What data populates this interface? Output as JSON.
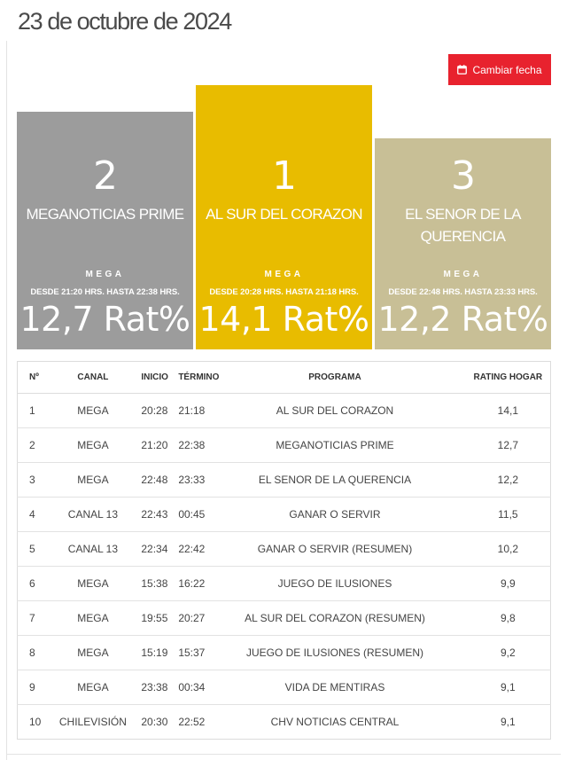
{
  "page_title": "23 de octubre de 2024",
  "change_date_button": {
    "label": "Cambiar fecha",
    "icon": "calendar-icon"
  },
  "podium": [
    {
      "rank": "2",
      "program": "MEGANOTICIAS PRIME",
      "channel": "MEGA",
      "timeslot": "DESDE 21:20 HRS. HASTA 22:38 HRS.",
      "rating": "12,7 Rat%",
      "color": "#9c9c9c"
    },
    {
      "rank": "1",
      "program": "AL SUR DEL CORAZON",
      "channel": "MEGA",
      "timeslot": "DESDE 20:28 HRS. HASTA 21:18 HRS.",
      "rating": "14,1 Rat%",
      "color": "#e8bc00"
    },
    {
      "rank": "3",
      "program": "EL SENOR DE LA QUERENCIA",
      "channel": "MEGA",
      "timeslot": "DESDE 22:48 HRS. HASTA 23:33 HRS.",
      "rating": "12,2 Rat%",
      "color": "#c8bf96"
    }
  ],
  "table": {
    "headers": {
      "no": "Nº",
      "canal": "CANAL",
      "inicio": "INICIO",
      "termino": "TÉRMINO",
      "programa": "PROGRAMA",
      "rating": "RATING HOGAR"
    },
    "rows": [
      {
        "no": "1",
        "canal": "MEGA",
        "inicio": "20:28",
        "termino": "21:18",
        "programa": "AL SUR DEL CORAZON",
        "rating": "14,1"
      },
      {
        "no": "2",
        "canal": "MEGA",
        "inicio": "21:20",
        "termino": "22:38",
        "programa": "MEGANOTICIAS PRIME",
        "rating": "12,7"
      },
      {
        "no": "3",
        "canal": "MEGA",
        "inicio": "22:48",
        "termino": "23:33",
        "programa": "EL SENOR DE LA QUERENCIA",
        "rating": "12,2"
      },
      {
        "no": "4",
        "canal": "CANAL 13",
        "inicio": "22:43",
        "termino": "00:45",
        "programa": "GANAR O SERVIR",
        "rating": "11,5"
      },
      {
        "no": "5",
        "canal": "CANAL 13",
        "inicio": "22:34",
        "termino": "22:42",
        "programa": "GANAR O SERVIR (RESUMEN)",
        "rating": "10,2"
      },
      {
        "no": "6",
        "canal": "MEGA",
        "inicio": "15:38",
        "termino": "16:22",
        "programa": "JUEGO DE ILUSIONES",
        "rating": "9,9"
      },
      {
        "no": "7",
        "canal": "MEGA",
        "inicio": "19:55",
        "termino": "20:27",
        "programa": "AL SUR DEL CORAZON (RESUMEN)",
        "rating": "9,8"
      },
      {
        "no": "8",
        "canal": "MEGA",
        "inicio": "15:19",
        "termino": "15:37",
        "programa": "JUEGO DE ILUSIONES (RESUMEN)",
        "rating": "9,2"
      },
      {
        "no": "9",
        "canal": "MEGA",
        "inicio": "23:38",
        "termino": "00:34",
        "programa": "VIDA DE MENTIRAS",
        "rating": "9,1"
      },
      {
        "no": "10",
        "canal": "CHILEVISIÓN",
        "inicio": "20:30",
        "termino": "22:52",
        "programa": "CHV NOTICIAS CENTRAL",
        "rating": "9,1"
      }
    ]
  }
}
